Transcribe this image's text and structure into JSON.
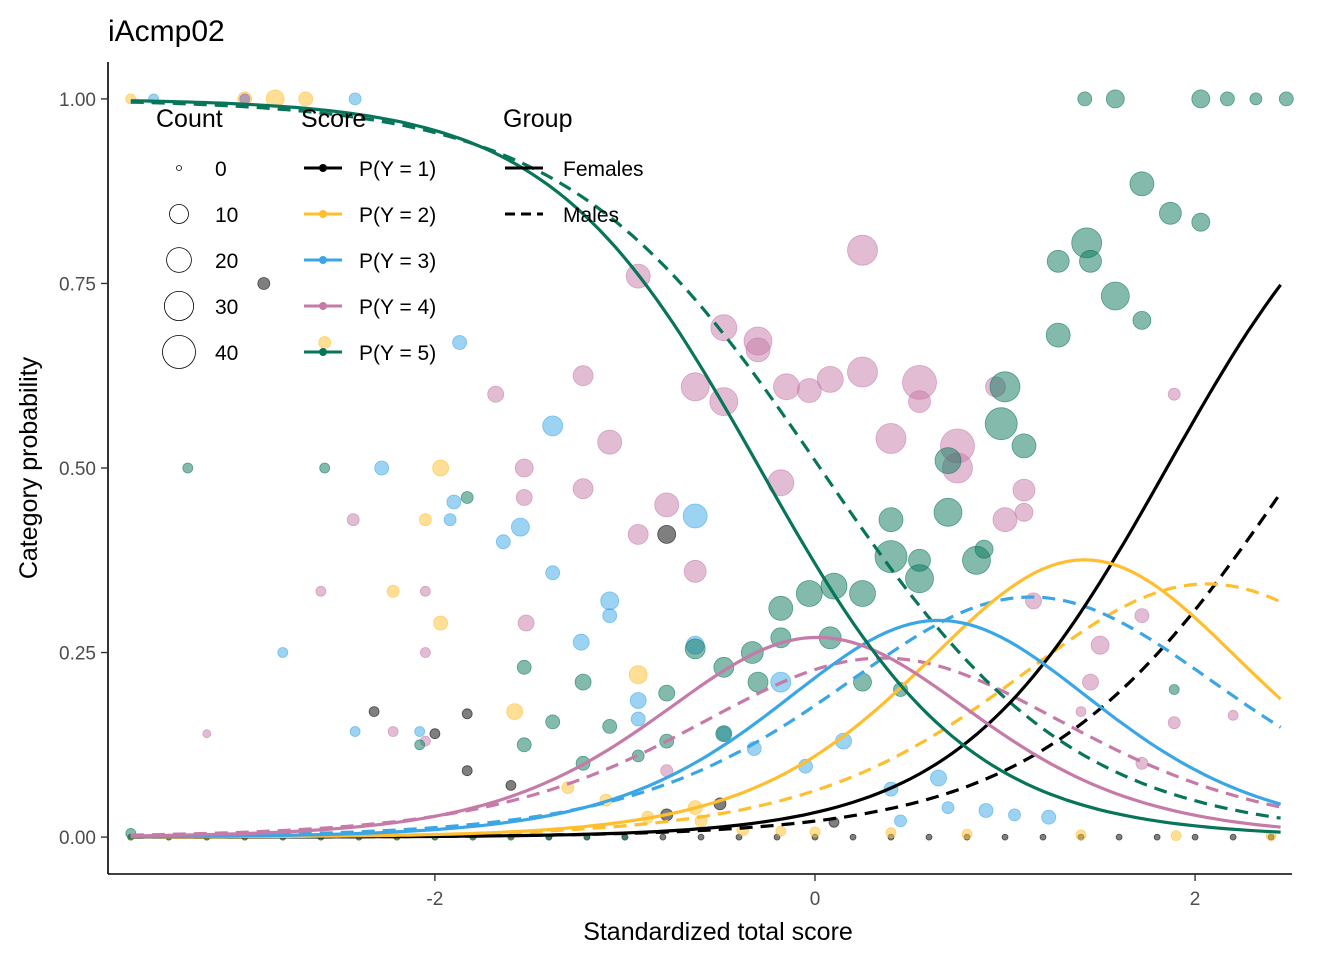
{
  "chart_data": {
    "type": "scatter",
    "title": "iAcmp02",
    "xlabel": "Standardized total score",
    "ylabel": "Category probability",
    "xlim": [
      -3.72,
      2.51
    ],
    "ylim": [
      -0.05,
      1.05
    ],
    "x_ticks": [
      -2,
      0,
      2
    ],
    "x_tick_labels": [
      "-2",
      "0",
      "2"
    ],
    "y_ticks": [
      0,
      0.25,
      0.5,
      0.75,
      1
    ],
    "y_tick_labels": [
      "0.00",
      "0.25",
      "0.50",
      "0.75",
      "1.00"
    ],
    "grid": false,
    "legend": {
      "placement": "top-left",
      "count": {
        "title": "Count",
        "sizes": [
          0,
          10,
          20,
          30,
          40
        ],
        "labels": [
          "0",
          "10",
          "20",
          "30",
          "40"
        ]
      },
      "score": {
        "title": "Score",
        "labels": [
          "P(Y = 1)",
          "P(Y = 2)",
          "P(Y = 3)",
          "P(Y = 4)",
          "P(Y = 5)"
        ]
      },
      "group": {
        "title": "Group",
        "labels": [
          "Females",
          "Males"
        ]
      }
    },
    "colors": {
      "P1": "#000000",
      "P2": "#ffbe2e",
      "P3": "#3aa6e6",
      "P4": "#c57aa8",
      "P5": "#08755a"
    },
    "model": {
      "Females": {
        "eta": [
          -1.87,
          -0.76,
          0.45,
          2.03
        ],
        "c": -1.34,
        "a": 1.82
      },
      "Males": {
        "eta": [
          -0.93,
          0.06,
          1.41,
          2.84
        ],
        "c": -0.97,
        "a": 1.5
      }
    },
    "series": [
      {
        "category": "P1",
        "name": "P(Y = 1)",
        "points": [
          [
            -3.6,
            0,
            3
          ],
          [
            -3.4,
            0,
            3
          ],
          [
            -3.2,
            0,
            3
          ],
          [
            -3.0,
            0,
            3
          ],
          [
            -2.8,
            0,
            3
          ],
          [
            -2.6,
            0,
            3
          ],
          [
            -2.4,
            0,
            3
          ],
          [
            -2.2,
            0,
            3
          ],
          [
            -2.0,
            0,
            3
          ],
          [
            -1.8,
            0,
            3
          ],
          [
            -1.6,
            0,
            3
          ],
          [
            -1.4,
            0,
            3
          ],
          [
            -1.2,
            0,
            3
          ],
          [
            -1.0,
            0,
            3
          ],
          [
            -0.8,
            0,
            3
          ],
          [
            -0.6,
            0,
            3
          ],
          [
            -0.4,
            0,
            3
          ],
          [
            -0.2,
            0,
            3
          ],
          [
            0.0,
            0,
            3
          ],
          [
            0.2,
            0,
            3
          ],
          [
            0.4,
            0,
            3
          ],
          [
            0.6,
            0,
            3
          ],
          [
            0.8,
            0,
            3
          ],
          [
            1.0,
            0,
            3
          ],
          [
            1.2,
            0,
            3
          ],
          [
            1.4,
            0,
            3
          ],
          [
            1.6,
            0,
            3
          ],
          [
            1.8,
            0,
            3
          ],
          [
            2.0,
            0,
            3
          ],
          [
            2.2,
            0,
            3
          ],
          [
            2.4,
            0,
            3
          ],
          [
            -2.9,
            0.75,
            6
          ],
          [
            -2.32,
            0.17,
            5
          ],
          [
            -2.0,
            0.14,
            5
          ],
          [
            -1.83,
            0.09,
            5
          ],
          [
            -1.83,
            0.167,
            5
          ],
          [
            -1.6,
            0.07,
            5
          ],
          [
            -0.78,
            0.03,
            6
          ],
          [
            -0.78,
            0.41,
            9
          ],
          [
            -0.5,
            0.045,
            6
          ],
          [
            0.1,
            0.02,
            5
          ]
        ]
      },
      {
        "category": "P2",
        "name": "P(Y = 2)",
        "points": [
          [
            -3.6,
            0,
            3
          ],
          [
            -3.4,
            0,
            3
          ],
          [
            -3.2,
            0,
            3
          ],
          [
            -3.0,
            0,
            3
          ],
          [
            -2.8,
            0,
            3
          ],
          [
            -2.6,
            0,
            3
          ],
          [
            -2.4,
            0,
            3
          ],
          [
            -2.2,
            0,
            3
          ],
          [
            -2.0,
            0,
            3
          ],
          [
            -1.8,
            0,
            3
          ],
          [
            -1.6,
            0,
            3
          ],
          [
            -3.6,
            1.0,
            5
          ],
          [
            -3.0,
            1.0,
            7
          ],
          [
            -2.84,
            1.0,
            9
          ],
          [
            -2.68,
            1.0,
            7
          ],
          [
            -2.58,
            0.67,
            6
          ],
          [
            -2.22,
            0.333,
            6
          ],
          [
            -2.05,
            0.43,
            6
          ],
          [
            -1.97,
            0.5,
            8
          ],
          [
            -1.97,
            0.29,
            7
          ],
          [
            -1.58,
            0.17,
            8
          ],
          [
            -1.3,
            0.067,
            6
          ],
          [
            -1.1,
            0.05,
            6
          ],
          [
            -0.93,
            0.22,
            9
          ],
          [
            -0.88,
            0.027,
            6
          ],
          [
            -0.63,
            0.04,
            7
          ],
          [
            -0.6,
            0.022,
            6
          ],
          [
            -0.38,
            0.01,
            6
          ],
          [
            -0.18,
            0.008,
            5
          ],
          [
            0.0,
            0.007,
            5
          ],
          [
            0.4,
            0.006,
            5
          ],
          [
            0.8,
            0.004,
            5
          ],
          [
            1.4,
            0.003,
            5
          ],
          [
            1.9,
            0.002,
            5
          ],
          [
            2.4,
            0.002,
            5
          ]
        ]
      },
      {
        "category": "P3",
        "name": "P(Y = 3)",
        "points": [
          [
            -3.48,
            1.0,
            5
          ],
          [
            -3.0,
            1.0,
            5
          ],
          [
            -2.42,
            1.0,
            6
          ],
          [
            -2.8,
            0.25,
            5
          ],
          [
            -2.42,
            0.143,
            5
          ],
          [
            -2.28,
            0.5,
            7
          ],
          [
            -2.08,
            0.143,
            5
          ],
          [
            -1.92,
            0.43,
            6
          ],
          [
            -1.87,
            0.67,
            7
          ],
          [
            -1.9,
            0.454,
            7
          ],
          [
            -1.64,
            0.4,
            7
          ],
          [
            -1.55,
            0.42,
            9
          ],
          [
            -1.38,
            0.557,
            10
          ],
          [
            -1.38,
            0.358,
            7
          ],
          [
            -1.23,
            0.264,
            8
          ],
          [
            -1.08,
            0.32,
            9
          ],
          [
            -1.08,
            0.3,
            7
          ],
          [
            -0.93,
            0.16,
            7
          ],
          [
            -0.93,
            0.185,
            8
          ],
          [
            -0.63,
            0.26,
            9
          ],
          [
            -0.63,
            0.435,
            12
          ],
          [
            -0.48,
            0.14,
            7
          ],
          [
            -0.32,
            0.12,
            7
          ],
          [
            -0.18,
            0.21,
            10
          ],
          [
            0.15,
            0.13,
            8
          ],
          [
            -0.05,
            0.096,
            7
          ],
          [
            0.4,
            0.065,
            7
          ],
          [
            0.45,
            0.022,
            6
          ],
          [
            0.65,
            0.08,
            8
          ],
          [
            0.9,
            0.036,
            7
          ],
          [
            1.05,
            0.03,
            6
          ],
          [
            1.23,
            0.027,
            7
          ],
          [
            0.7,
            0.04,
            6
          ]
        ]
      },
      {
        "category": "P4",
        "name": "P(Y = 4)",
        "points": [
          [
            -3.0,
            1.0,
            5
          ],
          [
            -3.2,
            0.14,
            4
          ],
          [
            -2.6,
            0.333,
            5
          ],
          [
            -2.43,
            0.43,
            6
          ],
          [
            -2.22,
            0.143,
            5
          ],
          [
            -2.05,
            0.333,
            5
          ],
          [
            -2.05,
            0.25,
            5
          ],
          [
            -2.05,
            0.13,
            5
          ],
          [
            -1.68,
            0.6,
            8
          ],
          [
            -1.53,
            0.46,
            8
          ],
          [
            -1.53,
            0.5,
            9
          ],
          [
            -1.52,
            0.29,
            8
          ],
          [
            -1.22,
            0.625,
            10
          ],
          [
            -1.22,
            0.472,
            10
          ],
          [
            -1.08,
            0.535,
            12
          ],
          [
            -0.93,
            0.76,
            12
          ],
          [
            -0.93,
            0.41,
            10
          ],
          [
            -0.78,
            0.45,
            12
          ],
          [
            -0.63,
            0.61,
            14
          ],
          [
            -0.63,
            0.36,
            11
          ],
          [
            -0.48,
            0.69,
            13
          ],
          [
            -0.3,
            0.672,
            14
          ],
          [
            -0.3,
            0.66,
            12
          ],
          [
            -0.48,
            0.59,
            14
          ],
          [
            -0.18,
            0.48,
            13
          ],
          [
            -0.15,
            0.61,
            13
          ],
          [
            0.08,
            0.62,
            13
          ],
          [
            -0.03,
            0.605,
            12
          ],
          [
            0.25,
            0.63,
            15
          ],
          [
            0.25,
            0.795,
            15
          ],
          [
            0.4,
            0.54,
            15
          ],
          [
            0.55,
            0.616,
            17
          ],
          [
            0.55,
            0.59,
            11
          ],
          [
            0.75,
            0.53,
            17
          ],
          [
            0.75,
            0.5,
            15
          ],
          [
            0.95,
            0.61,
            10
          ],
          [
            1.0,
            0.43,
            12
          ],
          [
            1.1,
            0.47,
            11
          ],
          [
            1.1,
            0.44,
            9
          ],
          [
            1.15,
            0.32,
            8
          ],
          [
            1.45,
            0.21,
            8
          ],
          [
            1.5,
            0.26,
            9
          ],
          [
            1.72,
            0.3,
            7
          ],
          [
            1.72,
            0.1,
            6
          ],
          [
            1.89,
            0.155,
            6
          ],
          [
            1.89,
            0.6,
            6
          ],
          [
            2.2,
            0.165,
            5
          ],
          [
            1.4,
            0.17,
            5
          ],
          [
            -0.78,
            0.09,
            6
          ]
        ]
      },
      {
        "category": "P5",
        "name": "P(Y = 5)",
        "points": [
          [
            -3.6,
            0,
            3
          ],
          [
            -3.4,
            0,
            3
          ],
          [
            -3.2,
            0,
            3
          ],
          [
            -3.0,
            0,
            3
          ],
          [
            -2.8,
            0,
            3
          ],
          [
            -2.6,
            0,
            3
          ],
          [
            -2.4,
            0,
            3
          ],
          [
            -2.2,
            0,
            3
          ],
          [
            -2.0,
            0,
            3
          ],
          [
            -1.8,
            0,
            3
          ],
          [
            -1.6,
            0,
            3
          ],
          [
            -1.4,
            0,
            3
          ],
          [
            -1.2,
            0,
            3
          ],
          [
            -1.0,
            0,
            3
          ],
          [
            -3.6,
            0.005,
            5
          ],
          [
            -3.3,
            0.5,
            5
          ],
          [
            -2.58,
            0.5,
            5
          ],
          [
            -2.08,
            0.125,
            5
          ],
          [
            -1.83,
            0.46,
            6
          ],
          [
            -1.53,
            0.125,
            7
          ],
          [
            -1.53,
            0.23,
            7
          ],
          [
            -1.38,
            0.156,
            7
          ],
          [
            -1.22,
            0.1,
            7
          ],
          [
            -1.22,
            0.21,
            8
          ],
          [
            -1.08,
            0.15,
            7
          ],
          [
            -0.93,
            0.11,
            6
          ],
          [
            -0.78,
            0.195,
            8
          ],
          [
            -0.78,
            0.13,
            7
          ],
          [
            -0.63,
            0.255,
            10
          ],
          [
            -0.48,
            0.23,
            10
          ],
          [
            -0.48,
            0.14,
            8
          ],
          [
            -0.33,
            0.25,
            11
          ],
          [
            -0.3,
            0.21,
            10
          ],
          [
            -0.18,
            0.27,
            10
          ],
          [
            -0.18,
            0.31,
            12
          ],
          [
            -0.03,
            0.33,
            13
          ],
          [
            0.08,
            0.27,
            11
          ],
          [
            0.1,
            0.34,
            13
          ],
          [
            0.25,
            0.33,
            13
          ],
          [
            0.25,
            0.21,
            9
          ],
          [
            0.4,
            0.43,
            12
          ],
          [
            0.4,
            0.38,
            16
          ],
          [
            0.55,
            0.35,
            14
          ],
          [
            0.55,
            0.375,
            11
          ],
          [
            0.7,
            0.44,
            14
          ],
          [
            0.7,
            0.51,
            13
          ],
          [
            0.85,
            0.375,
            14
          ],
          [
            0.98,
            0.56,
            16
          ],
          [
            1.0,
            0.61,
            15
          ],
          [
            1.1,
            0.53,
            12
          ],
          [
            1.28,
            0.78,
            11
          ],
          [
            1.28,
            0.68,
            12
          ],
          [
            1.43,
            0.805,
            15
          ],
          [
            1.45,
            0.78,
            11
          ],
          [
            1.58,
            0.733,
            14
          ],
          [
            1.58,
            1.0,
            9
          ],
          [
            1.72,
            0.885,
            12
          ],
          [
            1.72,
            0.7,
            9
          ],
          [
            1.87,
            0.845,
            11
          ],
          [
            2.03,
            0.833,
            9
          ],
          [
            2.03,
            1.0,
            9
          ],
          [
            2.17,
            1.0,
            7
          ],
          [
            2.32,
            1.0,
            6
          ],
          [
            2.48,
            1.0,
            7
          ],
          [
            1.42,
            1.0,
            7
          ],
          [
            1.89,
            0.2,
            5
          ],
          [
            0.89,
            0.39,
            9
          ],
          [
            0.45,
            0.2,
            7
          ]
        ]
      }
    ]
  }
}
